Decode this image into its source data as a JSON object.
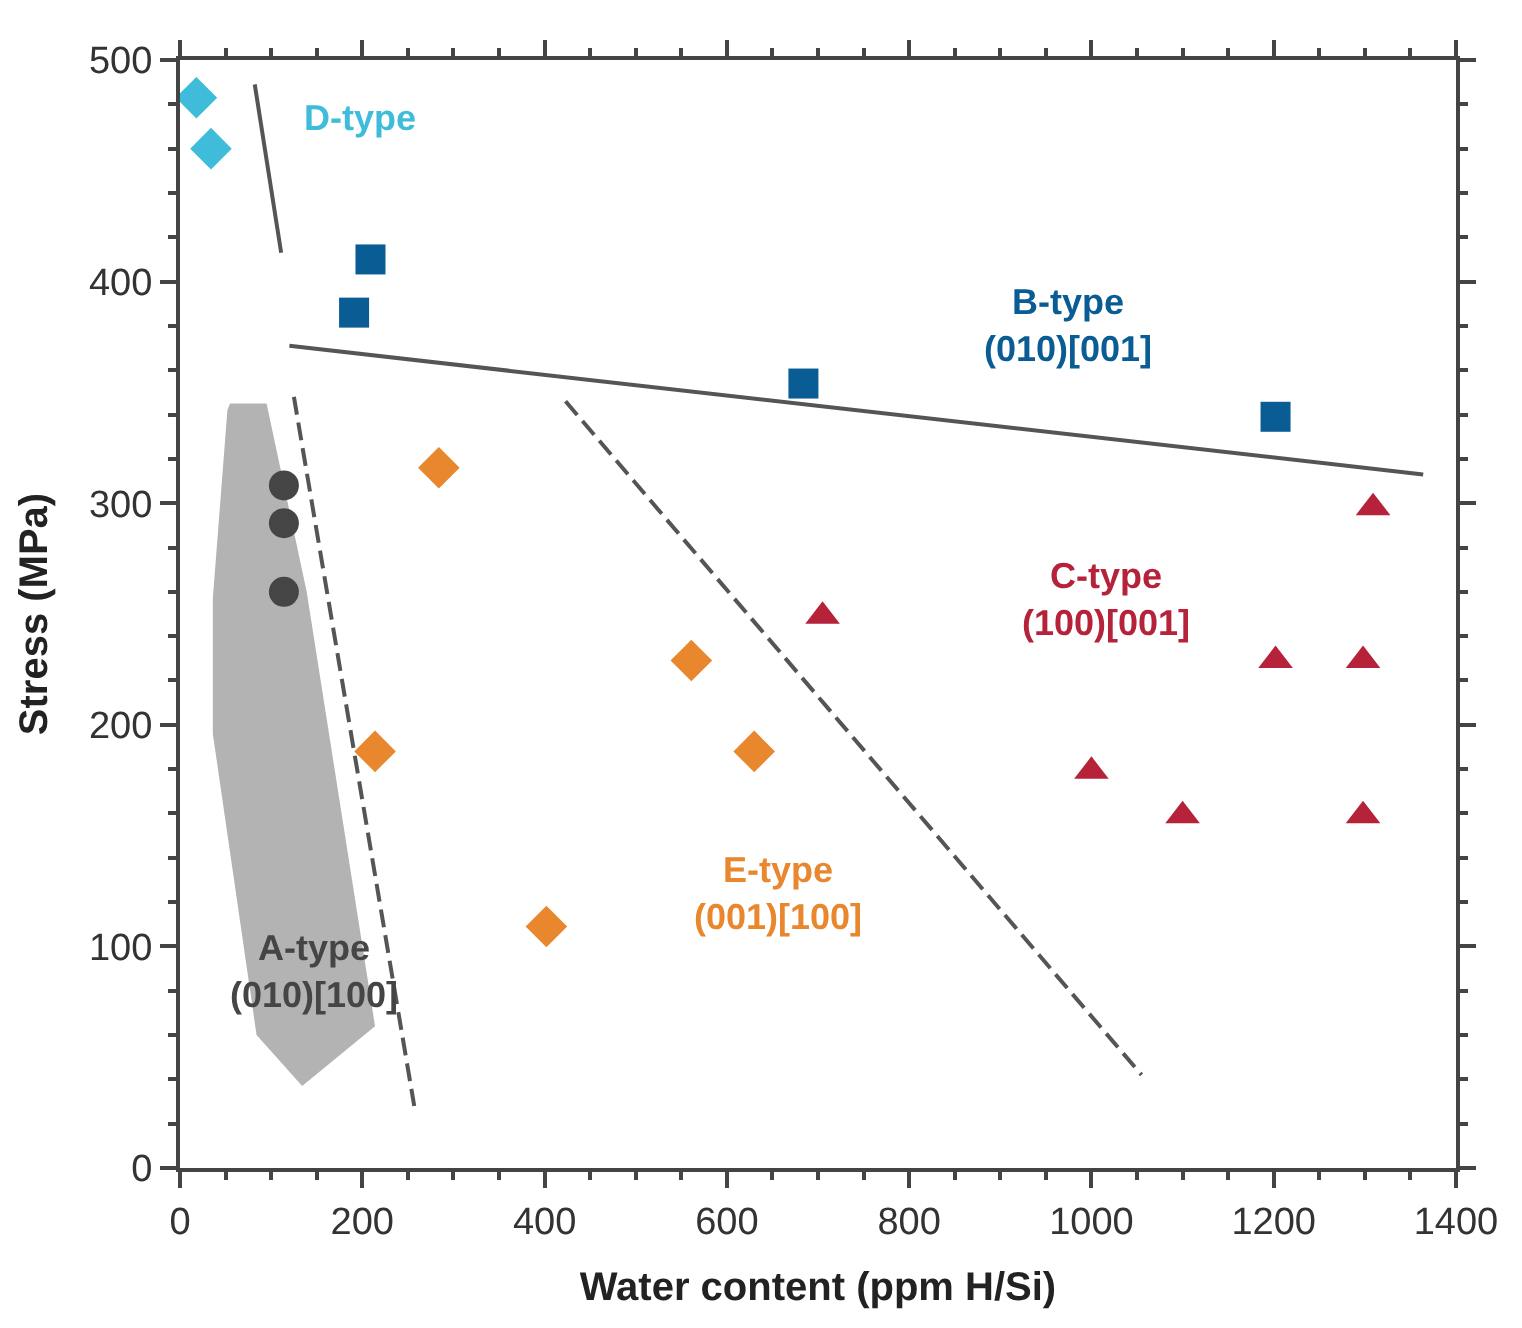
{
  "chart_data": {
    "type": "scatter",
    "xlabel": "Water content (ppm H/Si)",
    "ylabel": "Stress (MPa)",
    "xlim": [
      0,
      1400
    ],
    "ylim": [
      0,
      500
    ],
    "xticks": [
      0,
      {
        "value": 50,
        "label": null
      },
      {
        "value": 100,
        "label": null
      },
      {
        "value": 150,
        "label": null
      },
      200,
      {
        "value": 250,
        "label": null
      },
      {
        "value": 300,
        "label": null
      },
      {
        "value": 350,
        "label": null
      },
      400,
      {
        "value": 450,
        "label": null
      },
      {
        "value": 500,
        "label": null
      },
      {
        "value": 550,
        "label": null
      },
      600,
      {
        "value": 650,
        "label": null
      },
      {
        "value": 700,
        "label": null
      },
      {
        "value": 750,
        "label": null
      },
      800,
      {
        "value": 850,
        "label": null
      },
      {
        "value": 900,
        "label": null
      },
      {
        "value": 950,
        "label": null
      },
      1000,
      {
        "value": 1050,
        "label": null
      },
      {
        "value": 1100,
        "label": null
      },
      {
        "value": 1150,
        "label": null
      },
      1200,
      {
        "value": 1250,
        "label": null
      },
      {
        "value": 1300,
        "label": null
      },
      {
        "value": 1350,
        "label": null
      },
      1400
    ],
    "yticks": [
      0,
      {
        "value": 20,
        "label": null
      },
      {
        "value": 40,
        "label": null
      },
      {
        "value": 60,
        "label": null
      },
      {
        "value": 80,
        "label": null
      },
      100,
      {
        "value": 120,
        "label": null
      },
      {
        "value": 140,
        "label": null
      },
      {
        "value": 160,
        "label": null
      },
      {
        "value": 180,
        "label": null
      },
      200,
      {
        "value": 220,
        "label": null
      },
      {
        "value": 240,
        "label": null
      },
      {
        "value": 260,
        "label": null
      },
      {
        "value": 280,
        "label": null
      },
      300,
      {
        "value": 320,
        "label": null
      },
      {
        "value": 340,
        "label": null
      },
      {
        "value": 360,
        "label": null
      },
      {
        "value": 380,
        "label": null
      },
      400,
      {
        "value": 420,
        "label": null
      },
      {
        "value": 440,
        "label": null
      },
      {
        "value": 460,
        "label": null
      },
      {
        "value": 480,
        "label": null
      },
      500
    ],
    "series": [
      {
        "type": "area",
        "color": "#b3b3b3",
        "x": [
          55,
          95,
          139,
          214,
          134,
          84,
          36,
          36,
          52,
          55
        ],
        "values": [
          345,
          345,
          260,
          64,
          37,
          60,
          196,
          257,
          342,
          345
        ]
      },
      {
        "type": "line",
        "color": "#555555",
        "line_style": "solid",
        "marker": "none",
        "x": [
          82,
          111
        ],
        "values": [
          489,
          413
        ]
      },
      {
        "type": "line",
        "color": "#555555",
        "line_style": "solid",
        "marker": "none",
        "x": [
          120,
          1364
        ],
        "values": [
          371,
          313
        ]
      },
      {
        "type": "line",
        "color": "#555555",
        "line_style": "dashed",
        "marker": "none",
        "x": [
          125,
          257
        ],
        "values": [
          348,
          28
        ]
      },
      {
        "type": "line",
        "color": "#555555",
        "line_style": "dashed",
        "marker": "none",
        "x": [
          423,
          1055
        ],
        "values": [
          346,
          42
        ]
      },
      {
        "color": "#3fbcd9",
        "marker": "diamond",
        "x": [
          18,
          34
        ],
        "values": [
          483,
          460
        ]
      },
      {
        "color": "#0a5c94",
        "marker": "square",
        "x": [
          191,
          209,
          684,
          1202
        ],
        "values": [
          386,
          410,
          354,
          339
        ]
      },
      {
        "color": "#454545",
        "marker": "circle",
        "x": [
          114,
          114,
          114
        ],
        "values": [
          308,
          291,
          260
        ]
      },
      {
        "color": "#e8872e",
        "marker": "diamond",
        "x": [
          284,
          214,
          402,
          561,
          630
        ],
        "values": [
          316,
          188,
          109,
          229,
          188
        ]
      },
      {
        "color": "#b5223a",
        "marker": "triangle",
        "x": [
          705,
          1309,
          1202,
          1298,
          1000,
          1100,
          1298
        ],
        "values": [
          249,
          298,
          229,
          229,
          179,
          159,
          159
        ]
      }
    ],
    "annotations": [
      "D-type",
      "B-type\n(010)[001]",
      "C-type\n(100)[001]",
      "E-type\n(001)[100]",
      "A-type\n(010)[100]"
    ]
  }
}
